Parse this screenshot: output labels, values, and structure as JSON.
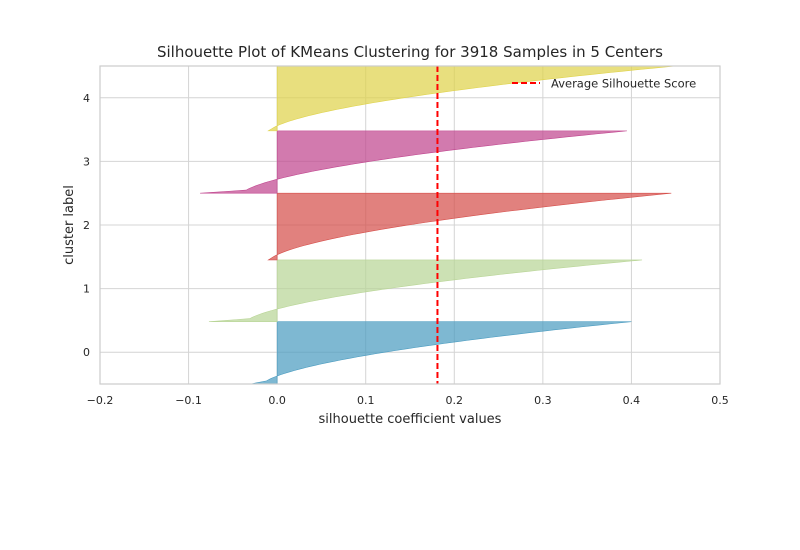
{
  "chart_data": {
    "type": "area",
    "title": "Silhouette Plot of KMeans Clustering for 3918 Samples in 5 Centers",
    "xlabel": "silhouette coefficient values",
    "ylabel": "cluster label",
    "xlim": [
      -0.2,
      0.5
    ],
    "xticks": [
      -0.2,
      -0.1,
      0.0,
      0.1,
      0.2,
      0.3,
      0.4,
      0.5
    ],
    "xtick_labels": [
      "−0.2",
      "−0.1",
      "0.0",
      "0.1",
      "0.2",
      "0.3",
      "0.4",
      "0.5"
    ],
    "yticks": [
      0,
      1,
      2,
      3,
      4
    ],
    "yrange_label_units": [
      -0.5,
      4.5
    ],
    "grid": true,
    "legend_position": "upper-right",
    "average_silhouette_score": 0.181,
    "average_line_color": "#ff0000",
    "legend_entries": [
      "Average Silhouette Score"
    ],
    "clusters": [
      {
        "label": "0",
        "color": "#4c9cc0",
        "min_value": -0.03,
        "max_value": 0.4,
        "band_bottom": -0.5,
        "band_top": 0.48
      },
      {
        "label": "1",
        "color": "#b9d597",
        "min_value": -0.077,
        "max_value": 0.412,
        "band_bottom": 0.48,
        "band_top": 1.45
      },
      {
        "label": "2",
        "color": "#d6504c",
        "min_value": -0.01,
        "max_value": 0.445,
        "band_bottom": 1.45,
        "band_top": 2.5
      },
      {
        "label": "3",
        "color": "#c0468f",
        "min_value": -0.087,
        "max_value": 0.395,
        "band_bottom": 2.5,
        "band_top": 3.48
      },
      {
        "label": "4",
        "color": "#dfd34c",
        "min_value": -0.01,
        "max_value": 0.45,
        "band_bottom": 3.48,
        "band_top": 4.5
      }
    ]
  }
}
